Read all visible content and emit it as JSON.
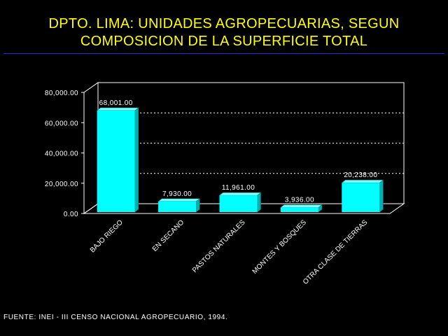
{
  "title_line1": "DPTO. LIMA: UNIDADES AGROPECUARIAS, SEGUN",
  "title_line2": "COMPOSICION DE LA SUPERFICIE TOTAL",
  "source": "FUENTE: INEI - III CENSO NACIONAL AGROPECUARIO, 1994.",
  "colors": {
    "background": "#000000",
    "title": "#ffff00",
    "rule": "#2a2ad0",
    "bar_front": "#00ffff",
    "bar_side": "#00b0b0",
    "bar_top": "#7fffff",
    "text": "#ffffff"
  },
  "chart_data": {
    "type": "bar",
    "style": "3d",
    "categories": [
      "BAJO RIEGO",
      "EN SECANO",
      "PASTOS NATURALES",
      "MONTES Y BOSQUES",
      "OTRA CLASE DE TIERRAS"
    ],
    "values": [
      68001,
      7930,
      11961,
      3936,
      20238
    ],
    "value_labels": [
      "68,001.00",
      "7,930.00",
      "11,961.00",
      "3,936.00",
      "20,238.00"
    ],
    "yticks": [
      "0.00",
      "20,000.00",
      "40,000.00",
      "60,000.00",
      "80,000.00"
    ],
    "ylim": [
      0,
      80000
    ],
    "grid": "dotted horizontal on back wall",
    "legend": "none"
  }
}
